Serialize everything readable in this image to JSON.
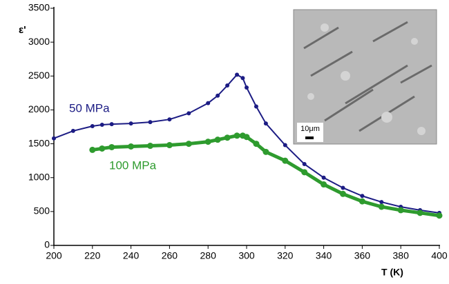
{
  "chart_data": {
    "type": "line",
    "x_label": "T (K)",
    "y_label": "ε'",
    "x": [
      200,
      210,
      220,
      225,
      230,
      240,
      250,
      260,
      270,
      280,
      285,
      290,
      295,
      298,
      300,
      305,
      310,
      320,
      330,
      340,
      350,
      360,
      370,
      380,
      390,
      400
    ],
    "series": [
      {
        "name": "50 MPa",
        "color": "#1c1c84",
        "values": [
          1580,
          1690,
          1760,
          1780,
          1790,
          1800,
          1820,
          1860,
          1950,
          2100,
          2210,
          2360,
          2520,
          2470,
          2330,
          2050,
          1800,
          1480,
          1200,
          1000,
          850,
          730,
          640,
          570,
          520,
          480
        ]
      },
      {
        "name": "100 MPa",
        "color": "#2e9b2e",
        "values": [
          null,
          null,
          1410,
          1430,
          1450,
          1460,
          1470,
          1480,
          1500,
          1530,
          1560,
          1590,
          1620,
          1620,
          1600,
          1500,
          1380,
          1250,
          1080,
          900,
          760,
          650,
          570,
          520,
          480,
          440
        ]
      }
    ],
    "xlim": [
      200,
      400
    ],
    "ylim": [
      0,
      3500
    ],
    "xticks": [
      200,
      220,
      240,
      260,
      280,
      300,
      320,
      340,
      360,
      380,
      400
    ],
    "yticks": [
      0,
      500,
      1000,
      1500,
      2000,
      2500,
      3000,
      3500
    ],
    "inset_scale_label": "10μm"
  }
}
